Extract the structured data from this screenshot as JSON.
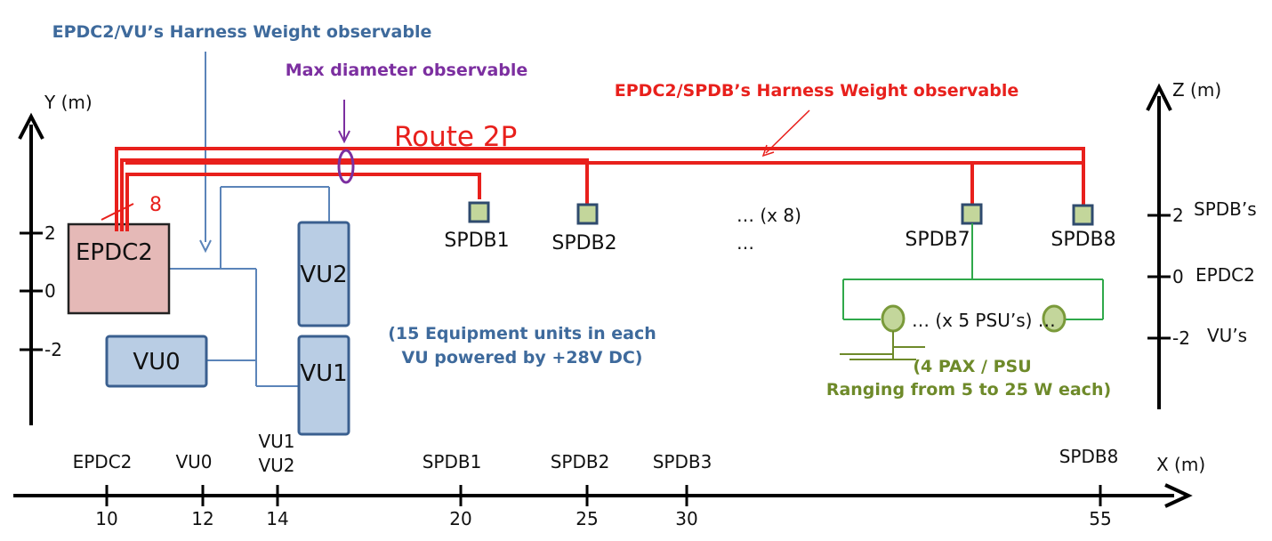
{
  "annotations": {
    "vu_harness": "EPDC2/VU’s Harness Weight observable",
    "max_diameter": "Max diameter observable",
    "spdb_harness": "EPDC2/SPDB’s Harness Weight observable",
    "route": "Route 2P",
    "wire_count": "8",
    "equipment_note_line1": "(15 Equipment units in each",
    "equipment_note_line2": "VU powered by +28V DC)",
    "pax_note_line1": "(4 PAX / PSU",
    "pax_note_line2": "Ranging from 5 to 25 W each)",
    "spdb_multiplier": "… (x 8)",
    "spdb_ellipsis": "…",
    "psu_multiplier": "… (x 5 PSU’s) …"
  },
  "y_axis": {
    "label": "Y (m)",
    "ticks": [
      "2",
      "0",
      "-2"
    ]
  },
  "z_axis": {
    "label": "Z (m)",
    "ticks": [
      {
        "value": "2",
        "name": "SPDB’s"
      },
      {
        "value": "0",
        "name": "EPDC2"
      },
      {
        "value": "-2",
        "name": "VU’s"
      }
    ]
  },
  "x_axis": {
    "label": "X (m)",
    "ticks": [
      "10",
      "12",
      "14",
      "20",
      "25",
      "30",
      "55"
    ],
    "names": [
      "EPDC2",
      "VU0",
      "VU1",
      "VU2",
      "SPDB1",
      "SPDB2",
      "SPDB3",
      "SPDB8"
    ]
  },
  "blocks": {
    "epdc2": "EPDC2",
    "vu0": "VU0",
    "vu1": "VU1",
    "vu2": "VU2",
    "spdb1": "SPDB1",
    "spdb2": "SPDB2",
    "spdb7": "SPDB7",
    "spdb8": "SPDB8"
  },
  "colors": {
    "route_red": "#E8201C",
    "vu_blue": "#5B84B9",
    "vu_fill": "#B9CDE4",
    "epdc_fill": "#E5B9B7",
    "spdb_fill": "#C3D69B",
    "psu_green": "#2FA84A",
    "purple": "#7C2FA0",
    "olive": "#6E8A2A"
  }
}
